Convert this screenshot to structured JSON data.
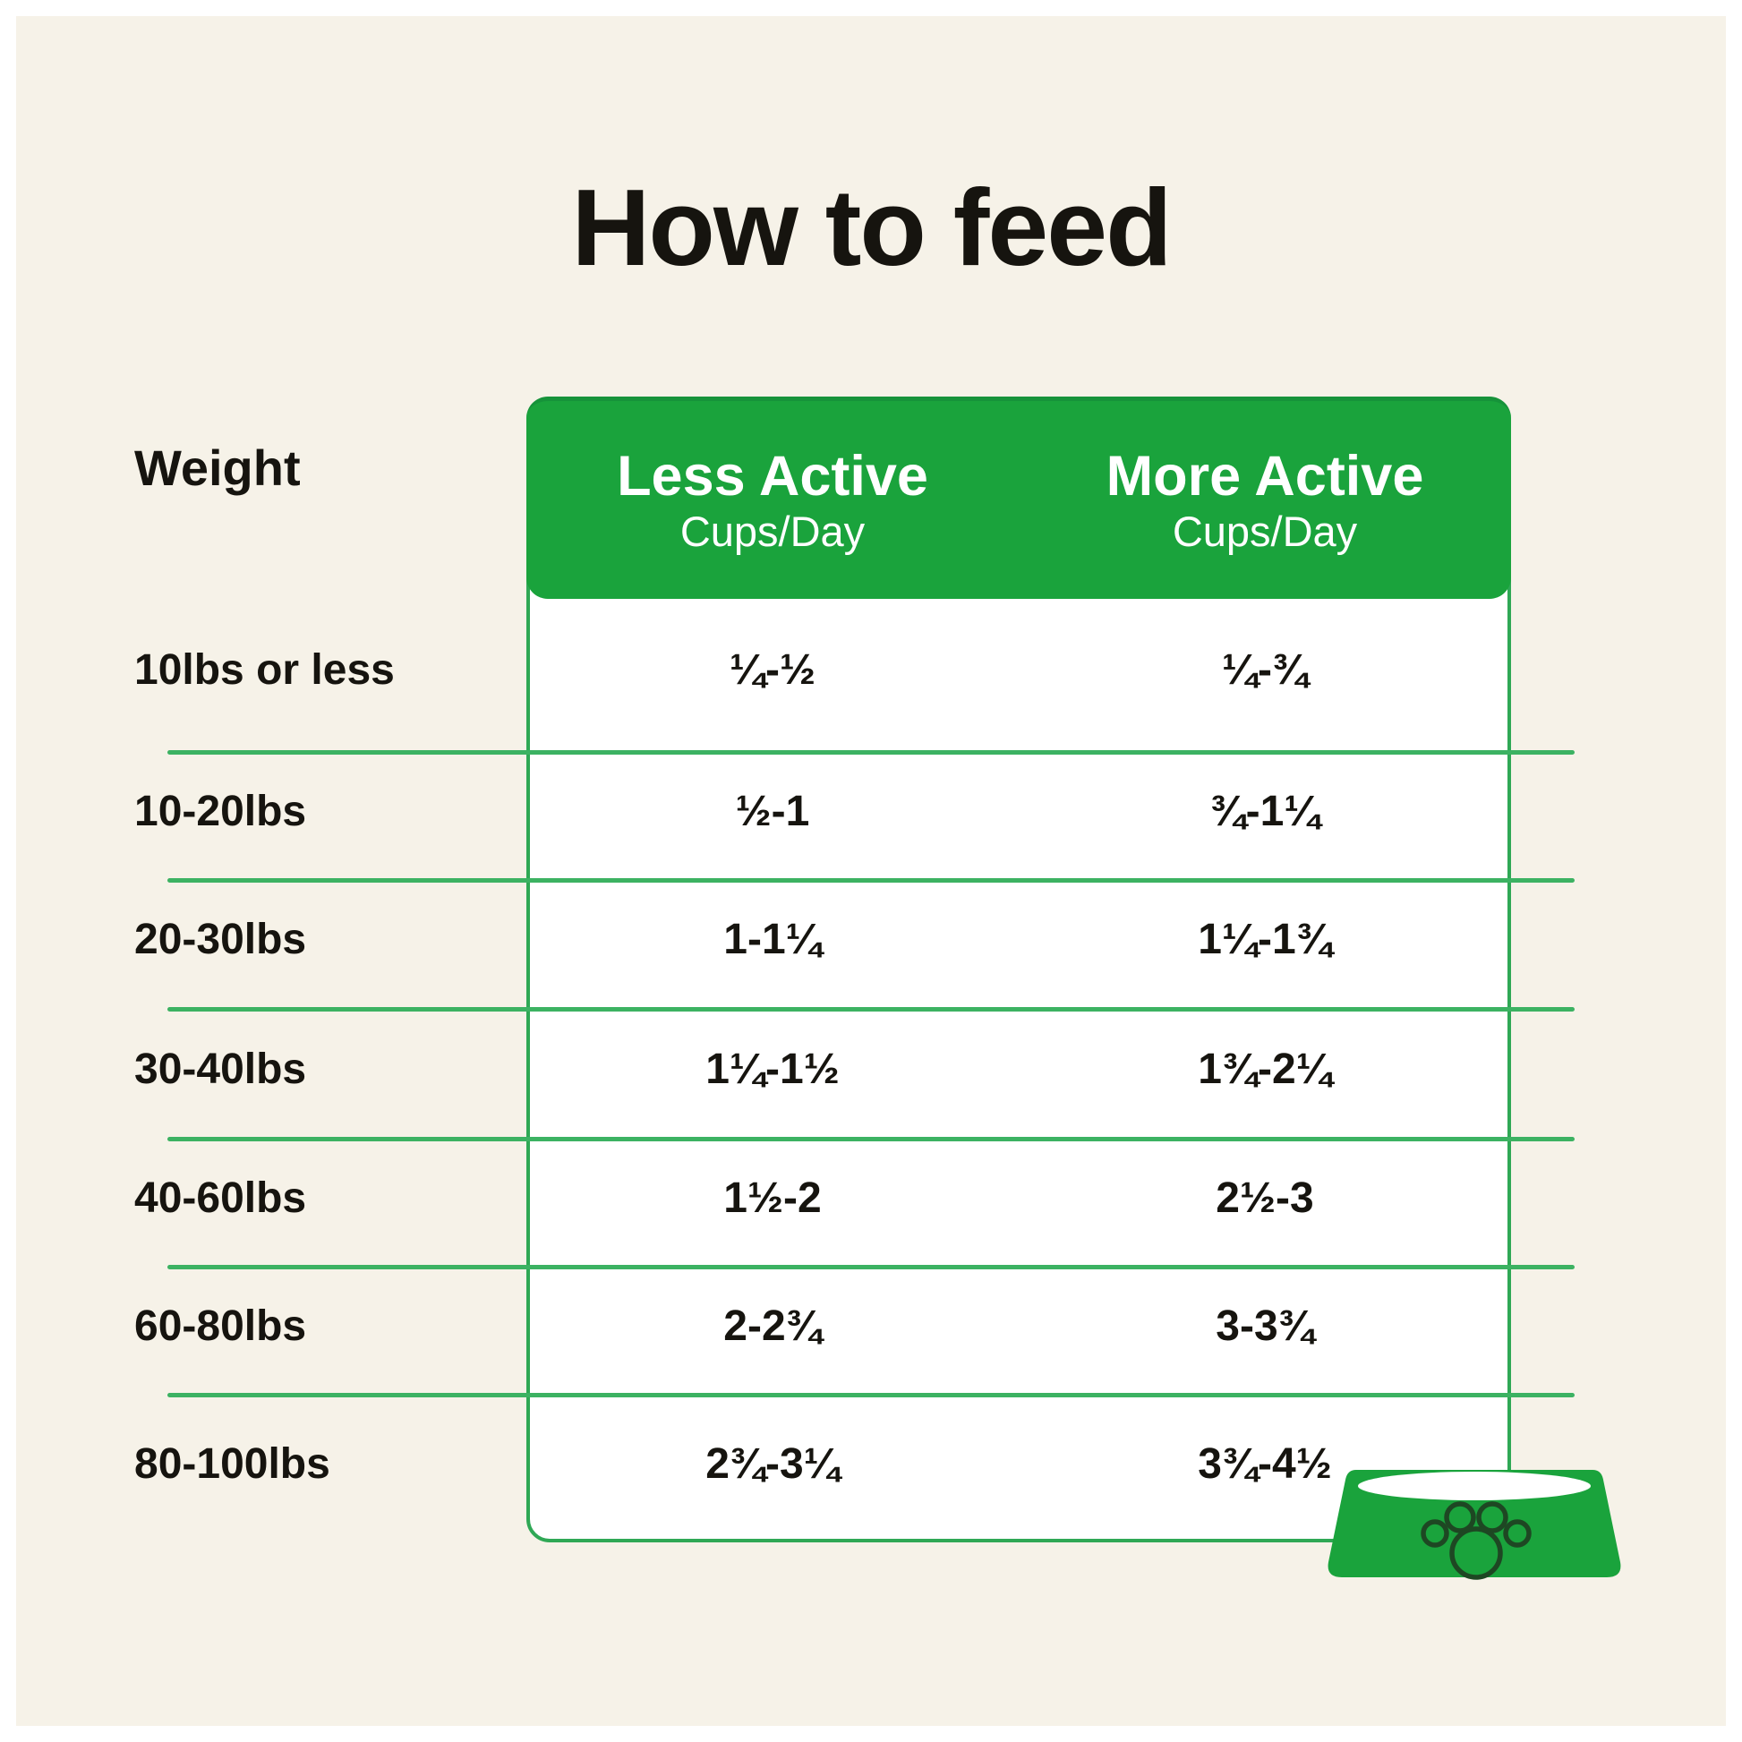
{
  "title": "How to feed",
  "chart_data": {
    "type": "table",
    "title": "How to feed",
    "weight_header": "Weight",
    "columns": [
      {
        "label": "Less Active",
        "sublabel": "Cups/Day"
      },
      {
        "label": "More Active",
        "sublabel": "Cups/Day"
      }
    ],
    "rows": [
      {
        "weight": "10lbs or less",
        "less_active": "¼-½",
        "more_active": "¼-¾"
      },
      {
        "weight": "10-20lbs",
        "less_active": "½-1",
        "more_active": "¾-1¼"
      },
      {
        "weight": "20-30lbs",
        "less_active": "1-1¼",
        "more_active": "1¼-1¾"
      },
      {
        "weight": "30-40lbs",
        "less_active": "1¼-1½",
        "more_active": "1¾-2¼"
      },
      {
        "weight": "40-60lbs",
        "less_active": "1½-2",
        "more_active": "2½-3"
      },
      {
        "weight": "60-80lbs",
        "less_active": "2-2¾",
        "more_active": "3-3¾"
      },
      {
        "weight": "80-100lbs",
        "less_active": "2¾-3¼",
        "more_active": "3¾-4½"
      }
    ]
  },
  "icons": {
    "bowl": "dog-bowl-icon",
    "paw": "paw-print-icon"
  },
  "colors": {
    "green": "#1aa33c",
    "divider_green": "#3cb262",
    "border_green": "#2fa855",
    "background_cream": "#f6f2e8",
    "card_white": "#ffffff",
    "text_black": "#16140f",
    "header_text": "#ffffff"
  }
}
